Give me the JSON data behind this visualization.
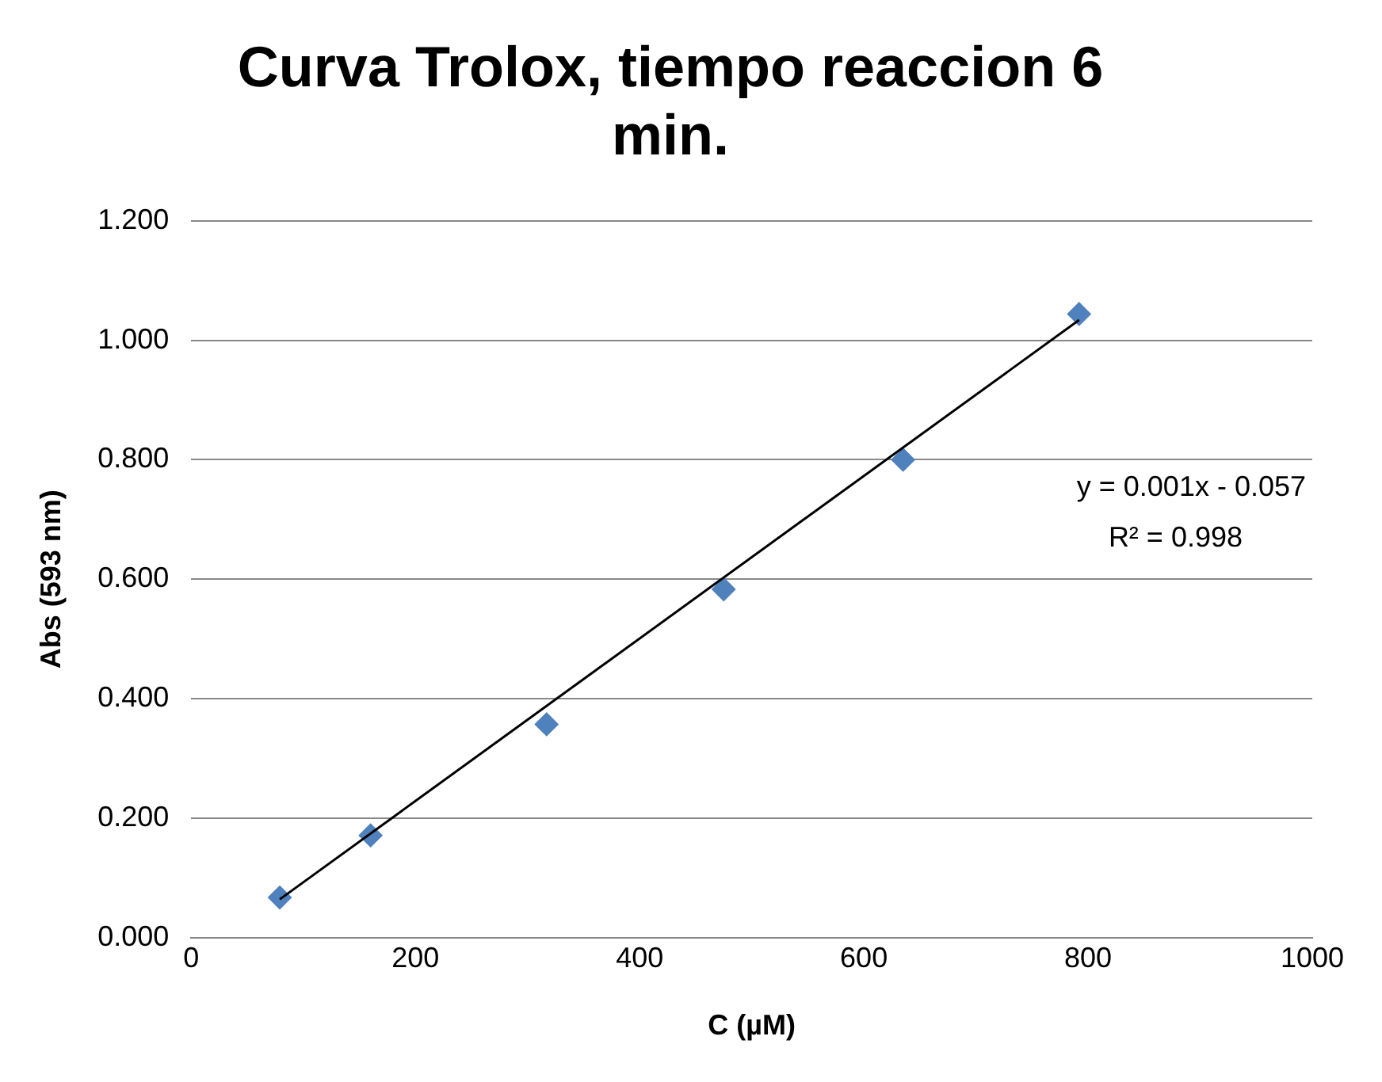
{
  "chart_data": {
    "type": "scatter",
    "title": "Curva Trolox, tiempo reaccion 6 min.",
    "xlabel": "C (µM)",
    "ylabel": "Abs (593 nm)",
    "series": [
      {
        "color": "#4f81bd",
        "marker": "diamond",
        "x": [
          79,
          160,
          317,
          475,
          635,
          792
        ],
        "values": [
          0.067,
          0.171,
          0.357,
          0.583,
          0.8,
          1.044
        ]
      },
      {
        "type": "line",
        "color": "#000000",
        "marker": "none",
        "line_style": "solid",
        "x": [
          79,
          792
        ],
        "values": [
          0.064,
          1.034
        ]
      }
    ],
    "xlim": [
      0,
      1000
    ],
    "xticks": [
      0,
      200,
      400,
      600,
      800,
      1000
    ],
    "ylim": [
      0,
      1.2
    ],
    "yticks": [
      {
        "value": 0,
        "label": "0.000"
      },
      {
        "value": 0.2,
        "label": "0.200"
      },
      {
        "value": 0.4,
        "label": "0.400"
      },
      {
        "value": 0.6,
        "label": "0.600"
      },
      {
        "value": 0.8,
        "label": "0.800"
      },
      {
        "value": 1,
        "label": "1.000"
      },
      {
        "value": 1.2,
        "label": "1.200"
      }
    ],
    "grid": "y",
    "legend": false,
    "annotations": [
      "y = 0.001x - 0.057",
      "R² = 0.998"
    ]
  }
}
